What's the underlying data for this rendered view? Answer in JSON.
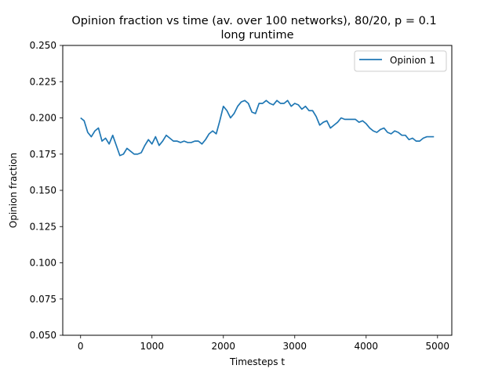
{
  "chart_data": {
    "type": "line",
    "title": "Opinion fraction vs time (av. over 100 networks), 80/20, p = 0.1",
    "subtitle": "long runtime",
    "xlabel": "Timesteps t",
    "ylabel": "Opinion fraction",
    "xlim": [
      -250,
      5200
    ],
    "ylim": [
      0.05,
      0.25
    ],
    "xticks": [
      0,
      1000,
      2000,
      3000,
      4000,
      5000
    ],
    "xtick_labels": [
      "0",
      "1000",
      "2000",
      "3000",
      "4000",
      "5000"
    ],
    "yticks": [
      0.05,
      0.075,
      0.1,
      0.125,
      0.15,
      0.175,
      0.2,
      0.225,
      0.25
    ],
    "ytick_labels": [
      "0.050",
      "0.075",
      "0.100",
      "0.125",
      "0.150",
      "0.175",
      "0.200",
      "0.225",
      "0.250"
    ],
    "grid": false,
    "legend_position": "top-right",
    "series": [
      {
        "name": "Opinion 1",
        "color": "#1f77b4",
        "x": [
          0,
          50,
          100,
          150,
          200,
          250,
          300,
          350,
          400,
          450,
          500,
          550,
          600,
          650,
          700,
          750,
          800,
          850,
          900,
          950,
          1000,
          1050,
          1100,
          1150,
          1200,
          1250,
          1300,
          1350,
          1400,
          1450,
          1500,
          1550,
          1600,
          1650,
          1700,
          1750,
          1800,
          1850,
          1900,
          1950,
          2000,
          2050,
          2100,
          2150,
          2200,
          2250,
          2300,
          2350,
          2400,
          2450,
          2500,
          2550,
          2600,
          2650,
          2700,
          2750,
          2800,
          2850,
          2900,
          2950,
          3000,
          3050,
          3100,
          3150,
          3200,
          3250,
          3300,
          3350,
          3400,
          3450,
          3500,
          3550,
          3600,
          3650,
          3700,
          3750,
          3800,
          3850,
          3900,
          3950,
          4000,
          4050,
          4100,
          4150,
          4200,
          4250,
          4300,
          4350,
          4400,
          4450,
          4500,
          4550,
          4600,
          4650,
          4700,
          4750,
          4800,
          4850,
          4900,
          4950
        ],
        "values": [
          0.2,
          0.198,
          0.19,
          0.187,
          0.191,
          0.193,
          0.184,
          0.186,
          0.182,
          0.188,
          0.181,
          0.174,
          0.175,
          0.179,
          0.177,
          0.175,
          0.175,
          0.176,
          0.181,
          0.185,
          0.182,
          0.187,
          0.181,
          0.184,
          0.188,
          0.186,
          0.184,
          0.184,
          0.183,
          0.184,
          0.183,
          0.183,
          0.184,
          0.184,
          0.182,
          0.185,
          0.189,
          0.191,
          0.189,
          0.198,
          0.208,
          0.205,
          0.2,
          0.203,
          0.208,
          0.211,
          0.212,
          0.21,
          0.204,
          0.203,
          0.21,
          0.21,
          0.212,
          0.21,
          0.209,
          0.212,
          0.21,
          0.21,
          0.212,
          0.208,
          0.21,
          0.209,
          0.206,
          0.208,
          0.205,
          0.205,
          0.201,
          0.195,
          0.197,
          0.198,
          0.193,
          0.195,
          0.197,
          0.2,
          0.199,
          0.199,
          0.199,
          0.199,
          0.197,
          0.198,
          0.196,
          0.193,
          0.191,
          0.19,
          0.192,
          0.193,
          0.19,
          0.189,
          0.191,
          0.19,
          0.188,
          0.188,
          0.185,
          0.186,
          0.184,
          0.184,
          0.186,
          0.187,
          0.187,
          0.187
        ]
      }
    ]
  }
}
